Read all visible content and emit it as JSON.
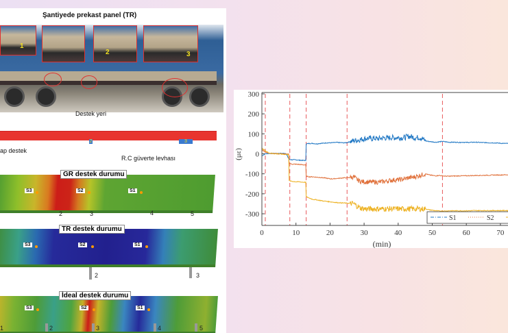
{
  "figure": {
    "photo_title": "Şantiyede prekast panel (TR)",
    "inset_labels": [
      "1",
      "2",
      "3"
    ],
    "support_location_label": "Destek yeri",
    "support_label": "ap destek",
    "deck_label": "R.C güverte levhası",
    "beam_support_numbers": [
      "2",
      "3"
    ],
    "panels": [
      {
        "title": "GR destek durumu",
        "sensors": [
          "S3",
          "S2",
          "S1"
        ],
        "supports": [
          "2",
          "3",
          "4",
          "5"
        ]
      },
      {
        "title": "TR destek durumu",
        "sensors": [
          "S3",
          "S2",
          "S1"
        ],
        "supports": [
          "2",
          "3"
        ]
      },
      {
        "title": "İdeal destek durumu",
        "sensors": [
          "S3",
          "S2",
          "S1"
        ],
        "supports": [
          "1",
          "2",
          "3",
          "4",
          "5"
        ]
      }
    ]
  },
  "chart_data": {
    "type": "line",
    "xlabel": "(min)",
    "ylabel": "(με)",
    "xlim": [
      0,
      75
    ],
    "ylim": [
      -360,
      300
    ],
    "xticks": [
      0,
      10,
      20,
      30,
      40,
      50,
      60,
      70
    ],
    "yticks": [
      300,
      200,
      100,
      0,
      -100,
      -200,
      -300
    ],
    "ytick_labels": [
      "300",
      "200",
      "100",
      "0",
      "-100",
      "-200",
      "-300"
    ],
    "vertical_markers": [
      1,
      8.2,
      13,
      25,
      53
    ],
    "marker_color": "#e8585a",
    "grid": false,
    "legend_placement": "bottom-right",
    "x": [
      0,
      1,
      2,
      3,
      4,
      5,
      6,
      7,
      8,
      9,
      10,
      11,
      12,
      13,
      14,
      15,
      16,
      17,
      18,
      19,
      20,
      21,
      22,
      23,
      24,
      25,
      26,
      27,
      28,
      29,
      30,
      31,
      32,
      33,
      34,
      35,
      36,
      37,
      38,
      39,
      40,
      41,
      42,
      43,
      44,
      45,
      46,
      47,
      48,
      49,
      50,
      51,
      52,
      53,
      54,
      55,
      56,
      57,
      58,
      59,
      60,
      61,
      62,
      63,
      64,
      65,
      66,
      67,
      68,
      69,
      70,
      71,
      72,
      73,
      74,
      75
    ],
    "series": [
      {
        "name": "S1",
        "color": "#1f77c4",
        "values": [
          -10,
          0,
          2,
          2,
          2,
          2,
          2,
          3,
          -28,
          -30,
          -30,
          -32,
          -33,
          50,
          52,
          52,
          50,
          52,
          53,
          55,
          55,
          56,
          57,
          56,
          55,
          56,
          62,
          66,
          68,
          72,
          75,
          78,
          76,
          78,
          75,
          78,
          80,
          78,
          82,
          80,
          82,
          80,
          82,
          88,
          85,
          80,
          82,
          78,
          65,
          62,
          60,
          58,
          60,
          62,
          60,
          58,
          58,
          58,
          57,
          58,
          57,
          57,
          58,
          58,
          57,
          56,
          56,
          55,
          55,
          54,
          53,
          52,
          52,
          52,
          52,
          50
        ]
      },
      {
        "name": "S2",
        "color": "#e0703a",
        "values": [
          20,
          10,
          3,
          2,
          1,
          0,
          0,
          -2,
          -48,
          -52,
          -52,
          -53,
          -55,
          -112,
          -115,
          -115,
          -117,
          -118,
          -120,
          -122,
          -125,
          -125,
          -123,
          -122,
          -120,
          -120,
          -118,
          -115,
          -130,
          -138,
          -140,
          -140,
          -142,
          -140,
          -142,
          -140,
          -138,
          -135,
          -132,
          -130,
          -130,
          -128,
          -125,
          -120,
          -118,
          -115,
          -110,
          -105,
          -100,
          -105,
          -108,
          -110,
          -108,
          -110,
          -112,
          -112,
          -111,
          -111,
          -110,
          -110,
          -110,
          -109,
          -109,
          -108,
          -108,
          -108,
          -107,
          -107,
          -106,
          -106,
          -106,
          -105,
          -105,
          -105,
          -105,
          -105
        ]
      },
      {
        "color": "#edb120",
        "values": [
          28,
          15,
          5,
          2,
          0,
          0,
          -2,
          -3,
          -135,
          -138,
          -140,
          -140,
          -142,
          -215,
          -222,
          -228,
          -230,
          -233,
          -236,
          -238,
          -240,
          -242,
          -244,
          -245,
          -246,
          -247,
          -248,
          -250,
          -262,
          -272,
          -275,
          -276,
          -275,
          -276,
          -275,
          -276,
          -275,
          -276,
          -275,
          -276,
          -275,
          -276,
          -275,
          -276,
          -275,
          -276,
          -275,
          -276,
          -275,
          -280,
          -282,
          -285,
          -286,
          -286,
          -286,
          -285,
          -285,
          -285,
          -285,
          -285,
          -285,
          -285,
          -284,
          -284,
          -284,
          -284,
          -284,
          -284,
          -284,
          -284,
          -284,
          -284,
          -284,
          -284,
          -284,
          -285
        ]
      }
    ]
  }
}
